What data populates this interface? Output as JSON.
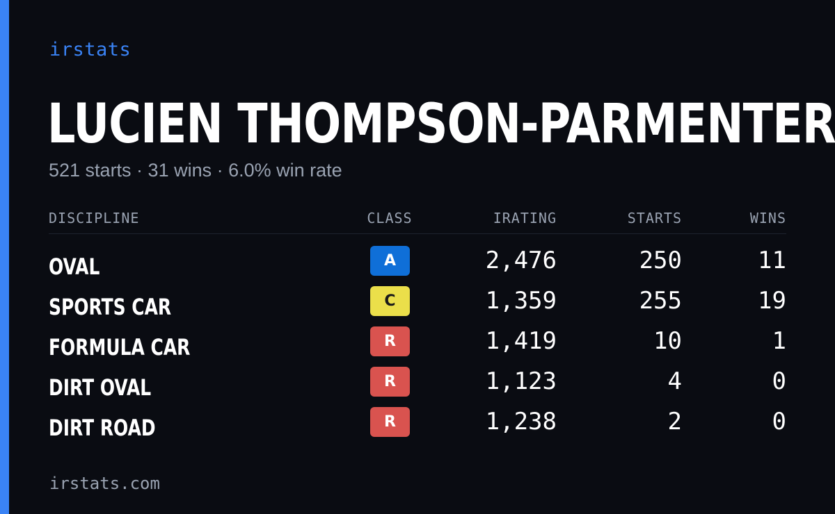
{
  "brand": "irstats",
  "driver": {
    "name": "LUCIEN THOMPSON-PARMENTER",
    "summary": "521 starts · 31 wins · 6.0% win rate"
  },
  "table": {
    "headers": {
      "discipline": "DISCIPLINE",
      "class": "CLASS",
      "irating": "IRATING",
      "starts": "STARTS",
      "wins": "WINS"
    },
    "rows": [
      {
        "discipline": "OVAL",
        "class": "A",
        "class_bg": "#0f6fd8",
        "class_fg": "#ffffff",
        "irating": "2,476",
        "starts": "250",
        "wins": "11"
      },
      {
        "discipline": "SPORTS CAR",
        "class": "C",
        "class_bg": "#ebdf4a",
        "class_fg": "#1a1a1a",
        "irating": "1,359",
        "starts": "255",
        "wins": "19"
      },
      {
        "discipline": "FORMULA CAR",
        "class": "R",
        "class_bg": "#d9534f",
        "class_fg": "#ffffff",
        "irating": "1,419",
        "starts": "10",
        "wins": "1"
      },
      {
        "discipline": "DIRT OVAL",
        "class": "R",
        "class_bg": "#d9534f",
        "class_fg": "#ffffff",
        "irating": "1,123",
        "starts": "4",
        "wins": "0"
      },
      {
        "discipline": "DIRT ROAD",
        "class": "R",
        "class_bg": "#d9534f",
        "class_fg": "#ffffff",
        "irating": "1,238",
        "starts": "2",
        "wins": "0"
      }
    ]
  },
  "footer": {
    "site": "irstats.com"
  },
  "colors": {
    "background": "#0a0c12",
    "accent": "#3a83f5",
    "muted_text": "#9aa3b2",
    "text": "#ffffff"
  }
}
